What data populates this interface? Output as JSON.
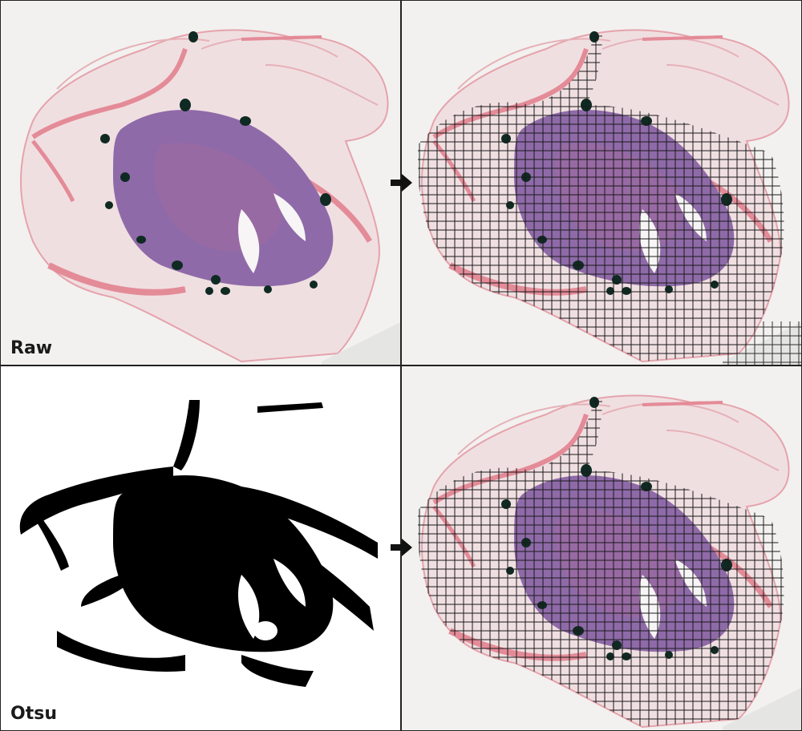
{
  "panels": {
    "raw": {
      "label": "Raw"
    },
    "otsu": {
      "label": "Otsu"
    }
  },
  "colors": {
    "background": "#f2f1ef",
    "stroma_pink": "#e9a3ad",
    "tissue_light": "#efd6da",
    "tumor_purple": "#8f6aa8",
    "ink_green": "#0f2a22",
    "mask_black": "#000000",
    "grid_line": "#1a1a1a"
  },
  "icons": {
    "arrow": "arrow-right-icon"
  }
}
